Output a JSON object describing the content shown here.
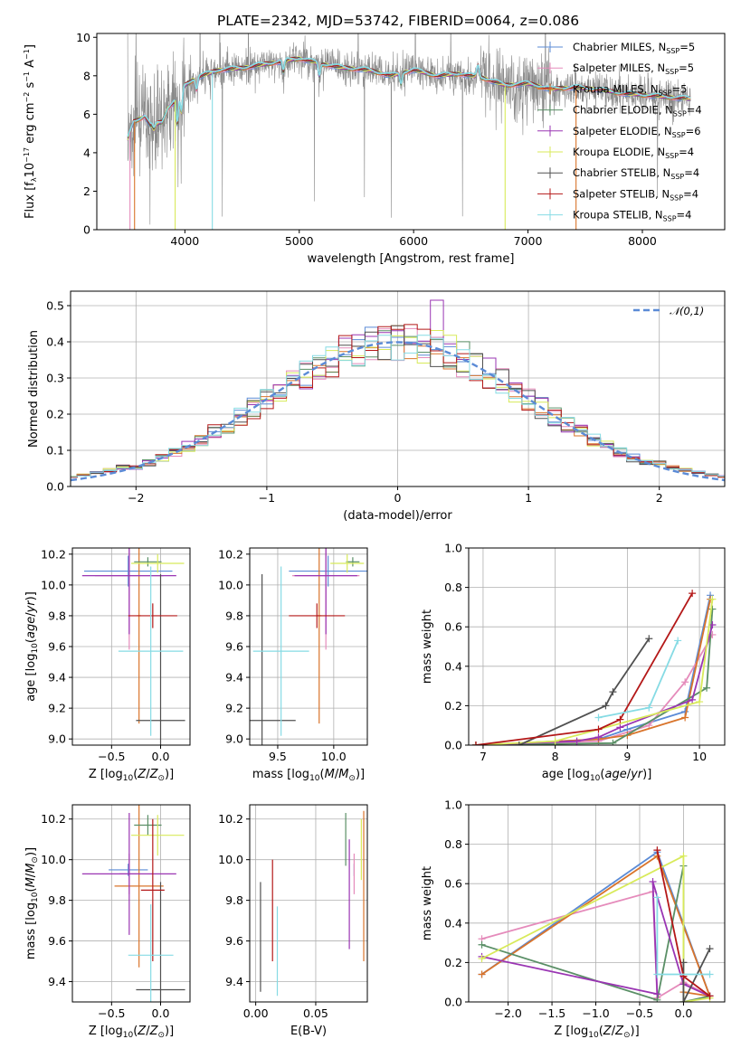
{
  "figure_title": "PLATE=2342, MJD=53742, FIBERID=0064, z=0.086",
  "legend_html": [
    "Chabrier MILES, N<tspan font-size='8' dy='3'>SSP</tspan><tspan dy='-3'>=5</tspan>",
    "Salpeter MILES, N<tspan font-size='8' dy='3'>SSP</tspan><tspan dy='-3'>=5</tspan>",
    "Kroupa MILES, N<tspan font-size='8' dy='3'>SSP</tspan><tspan dy='-3'>=5</tspan>",
    "Chabrier ELODIE, N<tspan font-size='8' dy='3'>SSP</tspan><tspan dy='-3'>=4</tspan>",
    "Salpeter ELODIE, N<tspan font-size='8' dy='3'>SSP</tspan><tspan dy='-3'>=6</tspan>",
    "Kroupa ELODIE, N<tspan font-size='8' dy='3'>SSP</tspan><tspan dy='-3'>=4</tspan>",
    "Chabrier STELIB, N<tspan font-size='8' dy='3'>SSP</tspan><tspan dy='-3'>=4</tspan>",
    "Salpeter STELIB, N<tspan font-size='8' dy='3'>SSP</tspan><tspan dy='-3'>=4</tspan>",
    "Kroupa STELIB, N<tspan font-size='8' dy='3'>SSP</tspan><tspan dy='-3'>=4</tspan>"
  ],
  "models": [
    {
      "name": "Chabrier MILES",
      "n_ssp": 5,
      "color": "#5b8bd6"
    },
    {
      "name": "Salpeter MILES",
      "n_ssp": 5,
      "color": "#e58bbb"
    },
    {
      "name": "Kroupa MILES",
      "n_ssp": 5,
      "color": "#d9742b"
    },
    {
      "name": "Chabrier ELODIE",
      "n_ssp": 4,
      "color": "#5a8f66"
    },
    {
      "name": "Salpeter ELODIE",
      "n_ssp": 6,
      "color": "#9a35b3"
    },
    {
      "name": "Kroupa ELODIE",
      "n_ssp": 4,
      "color": "#d8ea5a"
    },
    {
      "name": "Chabrier STELIB",
      "n_ssp": 4,
      "color": "#505050"
    },
    {
      "name": "Salpeter STELIB",
      "n_ssp": 4,
      "color": "#b41818"
    },
    {
      "name": "Kroupa STELIB",
      "n_ssp": 4,
      "color": "#86dbe4"
    }
  ],
  "chart_data": [
    {
      "id": "spectrum",
      "type": "line",
      "xlabel": "wavelength [Angstrom, rest frame]",
      "ylabel_html": "Flux [f<tspan font-size='8' dy='3'>λ</tspan><tspan dy='-3'>10</tspan><tspan font-size='8' dy='-5'>−17</tspan><tspan dy='5'> erg cm</tspan><tspan font-size='8' dy='-5'>−2</tspan><tspan dy='5'> s</tspan><tspan font-size='8' dy='-5'>−1</tspan><tspan dy='5'> A</tspan><tspan font-size='8' dy='-5'>−1</tspan><tspan dy='5'>]</tspan>",
      "xlim": [
        3230,
        8720
      ],
      "ylim": [
        0,
        10.2
      ],
      "xticks": [
        4000,
        5000,
        6000,
        7000,
        8000
      ],
      "yticks": [
        0,
        2,
        4,
        6,
        8,
        10
      ],
      "grid": false,
      "legend": "upper right",
      "data_range": [
        3500,
        8420
      ],
      "continuum": {
        "x": [
          3500,
          3550,
          3650,
          3700,
          3800,
          3850,
          3900,
          3950,
          4000,
          4050,
          4100,
          4200,
          4300,
          4500,
          4700,
          4900,
          5000,
          5200,
          5400,
          5600,
          5800,
          6000,
          6200,
          6400,
          6600,
          6800,
          7000,
          7200,
          7400,
          7600,
          7800,
          8000,
          8200,
          8420
        ],
        "y": [
          4.7,
          5.6,
          5.9,
          5.4,
          5.6,
          6.3,
          6.6,
          7.0,
          7.5,
          7.7,
          7.9,
          8.1,
          8.3,
          8.4,
          8.6,
          8.8,
          8.9,
          8.6,
          8.4,
          8.3,
          8.0,
          8.3,
          8.0,
          8.1,
          7.9,
          7.5,
          7.6,
          7.3,
          7.4,
          7.3,
          7.1,
          7.0,
          6.9,
          6.8
        ]
      },
      "dips": [
        {
          "x": 3730,
          "y": 5.2
        },
        {
          "x": 3934,
          "y": 5.5
        },
        {
          "x": 3969,
          "y": 6.1
        },
        {
          "x": 4102,
          "y": 7.3
        },
        {
          "x": 4861,
          "y": 8.2
        },
        {
          "x": 5175,
          "y": 8.0
        },
        {
          "x": 5890,
          "y": 7.6
        },
        {
          "x": 6563,
          "y": 8.5
        }
      ],
      "model_dropouts": [
        {
          "x": 3520,
          "ymin": 0,
          "model": "Salpeter MILES"
        },
        {
          "x": 3560,
          "ymin": 0,
          "model": "Kroupa MILES"
        },
        {
          "x": 3915,
          "ymin": 0,
          "model": "Kroupa ELODIE"
        },
        {
          "x": 4240,
          "ymin": 0,
          "model": "Kroupa STELIB"
        },
        {
          "x": 6800,
          "ymin": 0,
          "model": "Kroupa ELODIE"
        },
        {
          "x": 7420,
          "ymin": 0,
          "model": "Kroupa MILES"
        }
      ]
    },
    {
      "id": "residuals",
      "type": "histogram",
      "xlabel": "(data-model)/error",
      "ylabel": "Normed distribution",
      "xlim": [
        -2.5,
        2.5
      ],
      "ylim": [
        0,
        0.54
      ],
      "xticks": [
        -2,
        -1,
        0,
        1,
        2
      ],
      "yticks": [
        0.0,
        0.1,
        0.2,
        0.3,
        0.4,
        0.5
      ],
      "grid": true,
      "bin_width": 0.1,
      "reference_curve": {
        "label": "𝒩(0,1)",
        "mean": 0,
        "sigma": 1,
        "style": "dashed",
        "color": "#5b8bd6"
      },
      "note": "nine step histograms closely following N(0,1)"
    },
    {
      "id": "age-vs-Z",
      "type": "errorbar",
      "xlabel_html": "Z [log<tspan font-size='9' dy='3'>10</tspan><tspan dy='-3'>(</tspan><tspan font-style='italic'>Z</tspan><tspan dy='0'>/</tspan><tspan font-style='italic'>Z</tspan><tspan font-size='9' dy='3'>⊙</tspan><tspan dy='-3'>)]</tspan>",
      "ylabel_html": "age  [log<tspan font-size='9' dy='3'>10</tspan><tspan dy='-3'>(</tspan><tspan font-style='italic'>age</tspan><tspan dy='0'>/</tspan><tspan font-style='italic'>yr</tspan><tspan dy='0'>)]</tspan>",
      "xlim": [
        -0.9,
        0.3
      ],
      "ylim": [
        8.96,
        10.24
      ],
      "xticks": [
        -0.5,
        0.0
      ],
      "yticks": [
        9.0,
        9.2,
        9.4,
        9.6,
        9.8,
        10.0,
        10.2
      ],
      "grid": true,
      "points": [
        {
          "x": -0.33,
          "y": 10.09,
          "xerr": 0.45,
          "yerr": 0.1,
          "model": "Chabrier MILES"
        },
        {
          "x": -0.32,
          "y": 10.06,
          "xerr": 0.35,
          "yerr": 0.48,
          "model": "Salpeter MILES"
        },
        {
          "x": -0.22,
          "y": 9.8,
          "xerr": 0.02,
          "yerr": 0.7,
          "model": "Kroupa MILES"
        },
        {
          "x": -0.13,
          "y": 10.15,
          "xerr": 0.14,
          "yerr": 0.03,
          "model": "Chabrier ELODIE"
        },
        {
          "x": -0.32,
          "y": 10.06,
          "xerr": 0.48,
          "yerr": 0.38,
          "model": "Salpeter ELODIE"
        },
        {
          "x": -0.03,
          "y": 10.14,
          "xerr": 0.27,
          "yerr": 0.06,
          "model": "Kroupa ELODIE"
        },
        {
          "x": 0.0,
          "y": 9.12,
          "xerr": 0.25,
          "yerr": 0.95,
          "model": "Chabrier STELIB"
        },
        {
          "x": -0.08,
          "y": 9.8,
          "xerr": 0.25,
          "yerr": 0.08,
          "model": "Salpeter STELIB"
        },
        {
          "x": -0.1,
          "y": 9.57,
          "xerr": 0.33,
          "yerr": 0.55,
          "model": "Kroupa STELIB"
        }
      ]
    },
    {
      "id": "age-vs-mass",
      "type": "errorbar",
      "xlabel_html": "mass [log<tspan font-size='9' dy='3'>10</tspan><tspan dy='-3'>(</tspan><tspan font-style='italic'>M</tspan><tspan dy='0'>/</tspan><tspan font-style='italic'>M</tspan><tspan font-size='9' dy='3'>⊙</tspan><tspan dy='-3'>)]</tspan>",
      "xlim": [
        9.25,
        10.3
      ],
      "ylim": [
        8.96,
        10.24
      ],
      "xticks": [
        9.5,
        10.0
      ],
      "yticks": [
        9.0,
        9.2,
        9.4,
        9.6,
        9.8,
        10.0,
        10.2
      ],
      "grid": true,
      "points": [
        {
          "x": 9.95,
          "y": 10.09,
          "xerr": 0.35,
          "yerr": 0.1,
          "model": "Chabrier MILES"
        },
        {
          "x": 9.93,
          "y": 10.06,
          "xerr": 0.3,
          "yerr": 0.48,
          "model": "Salpeter MILES"
        },
        {
          "x": 9.87,
          "y": 9.8,
          "xerr": 0.02,
          "yerr": 0.7,
          "model": "Kroupa MILES"
        },
        {
          "x": 10.17,
          "y": 10.15,
          "xerr": 0.06,
          "yerr": 0.03,
          "model": "Chabrier ELODIE"
        },
        {
          "x": 9.93,
          "y": 10.06,
          "xerr": 0.28,
          "yerr": 0.38,
          "model": "Salpeter ELODIE"
        },
        {
          "x": 10.12,
          "y": 10.14,
          "xerr": 0.15,
          "yerr": 0.06,
          "model": "Kroupa ELODIE"
        },
        {
          "x": 9.36,
          "y": 9.12,
          "xerr": 0.3,
          "yerr": 0.95,
          "model": "Chabrier STELIB"
        },
        {
          "x": 9.85,
          "y": 9.8,
          "xerr": 0.25,
          "yerr": 0.08,
          "model": "Salpeter STELIB"
        },
        {
          "x": 9.53,
          "y": 9.57,
          "xerr": 0.25,
          "yerr": 0.55,
          "model": "Kroupa STELIB"
        }
      ]
    },
    {
      "id": "weight-vs-age",
      "type": "line",
      "xlabel_html": "age  [log<tspan font-size='9' dy='3'>10</tspan><tspan dy='-3'>(</tspan><tspan font-style='italic'>age</tspan><tspan dy='0'>/</tspan><tspan font-style='italic'>yr</tspan><tspan dy='0'>)]</tspan>",
      "ylabel": "mass weight",
      "xlim": [
        6.8,
        10.35
      ],
      "ylim": [
        0,
        1
      ],
      "xticks": [
        7,
        8,
        9,
        10
      ],
      "yticks": [
        0.0,
        0.2,
        0.4,
        0.6,
        0.8,
        1.0
      ],
      "grid": true,
      "series": [
        {
          "model": "Chabrier MILES",
          "x": [
            6.9,
            8.6,
            9.0,
            9.8,
            10.15
          ],
          "y": [
            0.0,
            0.03,
            0.08,
            0.17,
            0.76
          ]
        },
        {
          "model": "Salpeter MILES",
          "x": [
            6.9,
            8.6,
            9.3,
            9.8,
            10.18
          ],
          "y": [
            0.0,
            0.02,
            0.1,
            0.32,
            0.56
          ]
        },
        {
          "model": "Kroupa MILES",
          "x": [
            6.9,
            8.6,
            9.0,
            9.8,
            10.15
          ],
          "y": [
            0.0,
            0.03,
            0.05,
            0.14,
            0.74
          ]
        },
        {
          "model": "Chabrier ELODIE",
          "x": [
            6.9,
            8.8,
            10.1,
            10.18
          ],
          "y": [
            0.0,
            0.01,
            0.29,
            0.69
          ]
        },
        {
          "model": "Salpeter ELODIE",
          "x": [
            6.9,
            8.3,
            8.6,
            8.9,
            9.9,
            10.18
          ],
          "y": [
            0.0,
            0.02,
            0.04,
            0.09,
            0.23,
            0.61
          ]
        },
        {
          "model": "Kroupa ELODIE",
          "x": [
            6.9,
            8.0,
            10.0,
            10.18
          ],
          "y": [
            0.0,
            0.02,
            0.22,
            0.74
          ]
        },
        {
          "model": "Chabrier STELIB",
          "x": [
            7.5,
            8.7,
            8.8,
            9.3
          ],
          "y": [
            0.0,
            0.2,
            0.27,
            0.54
          ]
        },
        {
          "model": "Salpeter STELIB",
          "x": [
            6.9,
            8.6,
            8.9,
            9.9
          ],
          "y": [
            0.0,
            0.08,
            0.13,
            0.77
          ]
        },
        {
          "model": "Kroupa STELIB",
          "x": [
            8.6,
            9.3,
            9.7
          ],
          "y": [
            0.14,
            0.19,
            0.53
          ]
        }
      ]
    },
    {
      "id": "mass-vs-Z",
      "type": "errorbar",
      "xlabel_html": "Z [log<tspan font-size='9' dy='3'>10</tspan><tspan dy='-3'>(</tspan><tspan font-style='italic'>Z</tspan><tspan dy='0'>/</tspan><tspan font-style='italic'>Z</tspan><tspan font-size='9' dy='3'>⊙</tspan><tspan dy='-3'>)]</tspan>",
      "ylabel_html": "mass [log<tspan font-size='9' dy='3'>10</tspan><tspan dy='-3'>(</tspan><tspan font-style='italic'>M</tspan><tspan dy='0'>/</tspan><tspan font-style='italic'>M</tspan><tspan font-size='9' dy='3'>⊙</tspan><tspan dy='-3'>)]</tspan>",
      "xlim": [
        -0.9,
        0.3
      ],
      "ylim": [
        9.3,
        10.27
      ],
      "xticks": [
        -0.5,
        0.0
      ],
      "yticks": [
        9.4,
        9.6,
        9.8,
        10.0,
        10.2
      ],
      "grid": true,
      "points": [
        {
          "x": -0.33,
          "y": 9.95,
          "xerr": 0.2,
          "yerr": 0.03,
          "model": "Chabrier MILES"
        },
        {
          "x": -0.32,
          "y": 9.93,
          "xerr": 0.1,
          "yerr": 0.1,
          "model": "Salpeter MILES"
        },
        {
          "x": -0.22,
          "y": 9.87,
          "xerr": 0.25,
          "yerr": 0.4,
          "model": "Kroupa MILES"
        },
        {
          "x": -0.13,
          "y": 10.17,
          "xerr": 0.14,
          "yerr": 0.05,
          "model": "Chabrier ELODIE"
        },
        {
          "x": -0.32,
          "y": 9.93,
          "xerr": 0.48,
          "yerr": 0.3,
          "model": "Salpeter ELODIE"
        },
        {
          "x": -0.03,
          "y": 10.12,
          "xerr": 0.27,
          "yerr": 0.1,
          "model": "Kroupa ELODIE"
        },
        {
          "x": 0.0,
          "y": 9.36,
          "xerr": 0.25,
          "yerr": 0.53,
          "model": "Chabrier STELIB"
        },
        {
          "x": -0.08,
          "y": 9.85,
          "xerr": 0.12,
          "yerr": 0.35,
          "model": "Salpeter STELIB"
        },
        {
          "x": -0.1,
          "y": 9.53,
          "xerr": 0.23,
          "yerr": 0.25,
          "model": "Kroupa STELIB"
        }
      ]
    },
    {
      "id": "mass-vs-EBV",
      "type": "errorbar",
      "xlabel": "E(B-V)",
      "xlim": [
        -0.005,
        0.093
      ],
      "ylim": [
        9.3,
        10.27
      ],
      "xticks": [
        0.0,
        0.05
      ],
      "xticklabels": [
        "0.00",
        "0.05"
      ],
      "yticks": [
        9.4,
        9.6,
        9.8,
        10.0,
        10.2
      ],
      "grid": true,
      "points": [
        {
          "x": 0.082,
          "y": 9.95,
          "yerr": 0.03,
          "model": "Chabrier MILES"
        },
        {
          "x": 0.082,
          "y": 9.93,
          "yerr": 0.1,
          "model": "Salpeter MILES"
        },
        {
          "x": 0.09,
          "y": 9.87,
          "yerr": 0.37,
          "model": "Kroupa MILES"
        },
        {
          "x": 0.075,
          "y": 10.1,
          "yerr": 0.13,
          "model": "Chabrier ELODIE"
        },
        {
          "x": 0.078,
          "y": 9.83,
          "yerr": 0.27,
          "model": "Salpeter ELODIE"
        },
        {
          "x": 0.088,
          "y": 10.05,
          "yerr": 0.15,
          "model": "Kroupa ELODIE"
        },
        {
          "x": 0.004,
          "y": 9.62,
          "yerr": 0.27,
          "model": "Chabrier STELIB"
        },
        {
          "x": 0.014,
          "y": 9.75,
          "yerr": 0.25,
          "model": "Salpeter STELIB"
        },
        {
          "x": 0.018,
          "y": 9.55,
          "yerr": 0.22,
          "model": "Kroupa STELIB"
        }
      ]
    },
    {
      "id": "weight-vs-Z",
      "type": "line",
      "xlabel_html": "Z [log<tspan font-size='9' dy='3'>10</tspan><tspan dy='-3'>(</tspan><tspan font-style='italic'>Z</tspan><tspan dy='0'>/</tspan><tspan font-style='italic'>Z</tspan><tspan font-size='9' dy='3'>⊙</tspan><tspan dy='-3'>)]</tspan>",
      "ylabel": "mass weight",
      "xlim": [
        -2.45,
        0.47
      ],
      "ylim": [
        0,
        1
      ],
      "xticks": [
        -2.0,
        -1.5,
        -1.0,
        -0.5,
        0.0
      ],
      "yticks": [
        0.0,
        0.2,
        0.4,
        0.6,
        0.8,
        1.0
      ],
      "grid": true,
      "series": [
        {
          "model": "Chabrier MILES",
          "x": [
            -2.3,
            -0.3,
            0.3
          ],
          "y": [
            0.14,
            0.76,
            0.03
          ]
        },
        {
          "model": "Salpeter MILES",
          "x": [
            -2.3,
            -0.35,
            -0.3,
            0.0,
            0.3
          ],
          "y": [
            0.32,
            0.56,
            0.02,
            0.1,
            0.03
          ]
        },
        {
          "model": "Kroupa MILES",
          "x": [
            -2.3,
            -0.3,
            0.3,
            0.0
          ],
          "y": [
            0.14,
            0.74,
            0.03,
            0.05
          ]
        },
        {
          "model": "Chabrier ELODIE",
          "x": [
            -2.3,
            -0.3,
            0.0,
            0.0,
            0.3
          ],
          "y": [
            0.29,
            0.01,
            0.69,
            0.0,
            0.03
          ]
        },
        {
          "model": "Salpeter ELODIE",
          "x": [
            -2.3,
            -0.3,
            -0.35,
            0.0,
            0.3
          ],
          "y": [
            0.23,
            0.04,
            0.61,
            0.09,
            0.03
          ]
        },
        {
          "model": "Kroupa ELODIE",
          "x": [
            -2.3,
            0.0,
            0.0,
            0.3
          ],
          "y": [
            0.22,
            0.74,
            0.0,
            0.02
          ]
        },
        {
          "model": "Chabrier STELIB",
          "x": [
            0.0,
            0.0,
            0.3
          ],
          "y": [
            0.2,
            0.0,
            0.27
          ]
        },
        {
          "model": "Salpeter STELIB",
          "x": [
            -0.3,
            0.0,
            0.3
          ],
          "y": [
            0.77,
            0.13,
            0.03
          ]
        },
        {
          "model": "Kroupa STELIB",
          "x": [
            -0.3,
            -0.3,
            0.3
          ],
          "y": [
            0.53,
            0.14,
            0.14
          ]
        }
      ]
    }
  ]
}
